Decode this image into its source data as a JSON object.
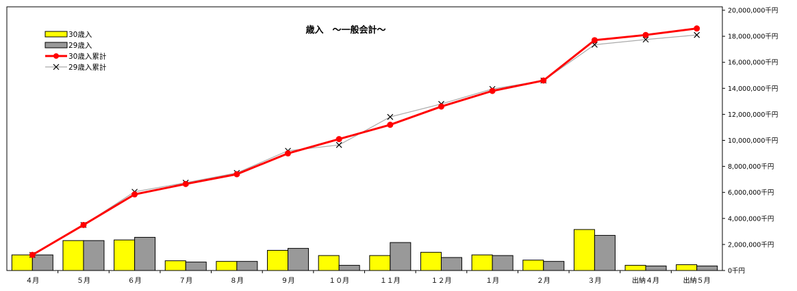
{
  "chart_data": {
    "type": "bar+line",
    "title": "歳入　～一般会計～",
    "categories": [
      "４月",
      "５月",
      "６月",
      "７月",
      "８月",
      "９月",
      "１０月",
      "１１月",
      "１２月",
      "１月",
      "２月",
      "３月",
      "出納４月",
      "出納５月"
    ],
    "series": [
      {
        "name": "30歳入",
        "type": "bar",
        "color": "#ffff00",
        "values": [
          1200000,
          2300000,
          2350000,
          750000,
          700000,
          1550000,
          1150000,
          1150000,
          1400000,
          1200000,
          800000,
          3150000,
          400000,
          450000
        ]
      },
      {
        "name": "29歳入",
        "type": "bar",
        "color": "#999999",
        "values": [
          1200000,
          2300000,
          2550000,
          650000,
          700000,
          1700000,
          400000,
          2150000,
          1000000,
          1150000,
          700000,
          2700000,
          350000,
          350000
        ]
      },
      {
        "name": "30歳入累計",
        "type": "line",
        "color": "#ff0000",
        "marker": "circle",
        "values": [
          1200000,
          3500000,
          5850000,
          6650000,
          7400000,
          9000000,
          10100000,
          11200000,
          12600000,
          13800000,
          14600000,
          17700000,
          18100000,
          18600000
        ]
      },
      {
        "name": "29歳入累計",
        "type": "line",
        "color": "#aaaaaa",
        "marker": "x",
        "values": [
          1200000,
          3500000,
          6050000,
          6750000,
          7500000,
          9200000,
          9650000,
          11800000,
          12800000,
          13950000,
          14600000,
          17350000,
          17750000,
          18100000
        ]
      }
    ],
    "y_ticks": [
      "0千円",
      "2,000,000千円",
      "4,000,000千円",
      "6,000,000千円",
      "8,000,000千円",
      "10,000,000千円",
      "12,000,000千円",
      "14,000,000千円",
      "16,000,000千円",
      "18,000,000千円",
      "20,000,000千円"
    ],
    "ylim": [
      0,
      20000000
    ],
    "y_axis_position": "right",
    "legend_position": "top-left",
    "grid": false
  }
}
